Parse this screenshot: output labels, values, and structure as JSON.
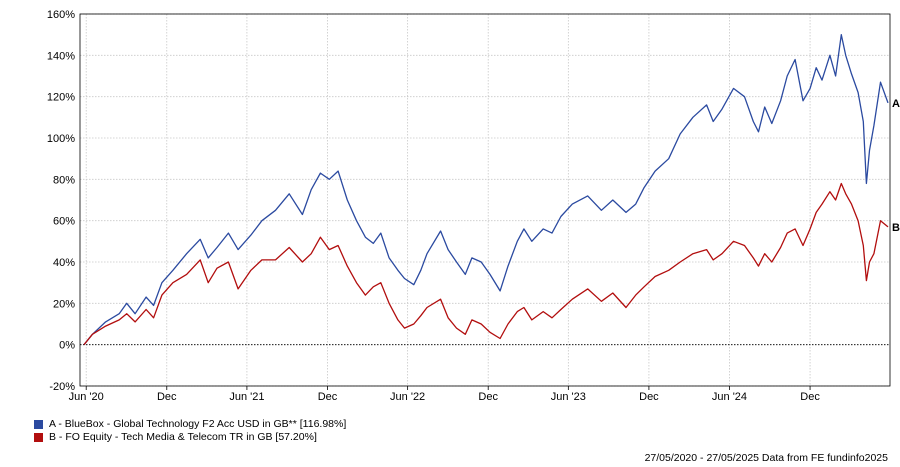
{
  "chart_data": {
    "type": "line",
    "x_start": "27/05/2020",
    "x_end": "27/05/2025",
    "xticks": [
      {
        "date": "2020-06-01",
        "label": "Jun '20"
      },
      {
        "date": "2020-12-01",
        "label": "Dec"
      },
      {
        "date": "2021-06-01",
        "label": "Jun '21"
      },
      {
        "date": "2021-12-01",
        "label": "Dec"
      },
      {
        "date": "2022-06-01",
        "label": "Jun '22"
      },
      {
        "date": "2022-12-01",
        "label": "Dec"
      },
      {
        "date": "2023-06-01",
        "label": "Jun '23"
      },
      {
        "date": "2023-12-01",
        "label": "Dec"
      },
      {
        "date": "2024-06-01",
        "label": "Jun '24"
      },
      {
        "date": "2024-12-01",
        "label": "Dec"
      }
    ],
    "ylim": [
      -20,
      160
    ],
    "yticks": [
      -20,
      0,
      20,
      40,
      60,
      80,
      100,
      120,
      140,
      160
    ],
    "ytick_suffix": "%",
    "grid": true,
    "baseline": 0,
    "series": [
      {
        "name": "A - BlueBox - Global Technology F2 Acc USD in GB** [116.98%]",
        "end_label": "A",
        "color": "#2b4aa0",
        "points": [
          [
            "2020-05-27",
            0
          ],
          [
            "2020-06-15",
            5
          ],
          [
            "2020-07-15",
            11
          ],
          [
            "2020-08-15",
            15
          ],
          [
            "2020-09-01",
            20
          ],
          [
            "2020-09-20",
            15
          ],
          [
            "2020-10-15",
            23
          ],
          [
            "2020-11-01",
            19
          ],
          [
            "2020-11-20",
            30
          ],
          [
            "2020-12-15",
            36
          ],
          [
            "2021-01-15",
            44
          ],
          [
            "2021-02-15",
            51
          ],
          [
            "2021-03-05",
            42
          ],
          [
            "2021-03-25",
            47
          ],
          [
            "2021-04-20",
            54
          ],
          [
            "2021-05-12",
            46
          ],
          [
            "2021-06-10",
            53
          ],
          [
            "2021-07-05",
            60
          ],
          [
            "2021-08-05",
            65
          ],
          [
            "2021-09-05",
            73
          ],
          [
            "2021-10-05",
            63
          ],
          [
            "2021-10-25",
            75
          ],
          [
            "2021-11-15",
            83
          ],
          [
            "2021-12-05",
            80
          ],
          [
            "2021-12-25",
            84
          ],
          [
            "2022-01-15",
            70
          ],
          [
            "2022-02-05",
            60
          ],
          [
            "2022-02-25",
            52
          ],
          [
            "2022-03-15",
            49
          ],
          [
            "2022-04-01",
            54
          ],
          [
            "2022-04-20",
            42
          ],
          [
            "2022-05-10",
            36
          ],
          [
            "2022-05-25",
            32
          ],
          [
            "2022-06-15",
            29
          ],
          [
            "2022-07-01",
            36
          ],
          [
            "2022-07-15",
            44
          ],
          [
            "2022-08-15",
            55
          ],
          [
            "2022-09-01",
            46
          ],
          [
            "2022-09-20",
            40
          ],
          [
            "2022-10-10",
            34
          ],
          [
            "2022-10-25",
            42
          ],
          [
            "2022-11-15",
            40
          ],
          [
            "2022-12-05",
            34
          ],
          [
            "2022-12-28",
            26
          ],
          [
            "2023-01-15",
            38
          ],
          [
            "2023-02-05",
            50
          ],
          [
            "2023-02-20",
            56
          ],
          [
            "2023-03-10",
            50
          ],
          [
            "2023-04-05",
            56
          ],
          [
            "2023-04-25",
            54
          ],
          [
            "2023-05-15",
            62
          ],
          [
            "2023-06-10",
            68
          ],
          [
            "2023-07-15",
            72
          ],
          [
            "2023-08-15",
            65
          ],
          [
            "2023-09-10",
            70
          ],
          [
            "2023-10-10",
            64
          ],
          [
            "2023-11-01",
            68
          ],
          [
            "2023-11-20",
            76
          ],
          [
            "2023-12-15",
            84
          ],
          [
            "2024-01-15",
            90
          ],
          [
            "2024-02-10",
            102
          ],
          [
            "2024-03-10",
            110
          ],
          [
            "2024-04-10",
            116
          ],
          [
            "2024-04-25",
            108
          ],
          [
            "2024-05-15",
            114
          ],
          [
            "2024-06-10",
            124
          ],
          [
            "2024-07-05",
            120
          ],
          [
            "2024-07-25",
            108
          ],
          [
            "2024-08-06",
            103
          ],
          [
            "2024-08-20",
            115
          ],
          [
            "2024-09-05",
            107
          ],
          [
            "2024-09-25",
            118
          ],
          [
            "2024-10-10",
            130
          ],
          [
            "2024-10-28",
            138
          ],
          [
            "2024-11-15",
            118
          ],
          [
            "2024-12-01",
            124
          ],
          [
            "2024-12-15",
            134
          ],
          [
            "2024-12-28",
            128
          ],
          [
            "2025-01-15",
            140
          ],
          [
            "2025-01-28",
            130
          ],
          [
            "2025-02-10",
            150
          ],
          [
            "2025-02-20",
            140
          ],
          [
            "2025-03-05",
            131
          ],
          [
            "2025-03-20",
            122
          ],
          [
            "2025-04-01",
            108
          ],
          [
            "2025-04-08",
            78
          ],
          [
            "2025-04-15",
            94
          ],
          [
            "2025-04-25",
            106
          ],
          [
            "2025-05-10",
            127
          ],
          [
            "2025-05-27",
            117
          ]
        ]
      },
      {
        "name": "B - FO Equity - Tech Media & Telecom TR in GB [57.20%]",
        "end_label": "B",
        "color": "#b20e0e",
        "points": [
          [
            "2020-05-27",
            0
          ],
          [
            "2020-06-15",
            5
          ],
          [
            "2020-07-15",
            9
          ],
          [
            "2020-08-15",
            12
          ],
          [
            "2020-09-01",
            15
          ],
          [
            "2020-09-20",
            11
          ],
          [
            "2020-10-15",
            17
          ],
          [
            "2020-11-01",
            13
          ],
          [
            "2020-11-20",
            24
          ],
          [
            "2020-12-15",
            30
          ],
          [
            "2021-01-15",
            34
          ],
          [
            "2021-02-15",
            41
          ],
          [
            "2021-03-05",
            30
          ],
          [
            "2021-03-25",
            37
          ],
          [
            "2021-04-20",
            40
          ],
          [
            "2021-05-12",
            27
          ],
          [
            "2021-06-10",
            36
          ],
          [
            "2021-07-05",
            41
          ],
          [
            "2021-08-05",
            41
          ],
          [
            "2021-09-05",
            47
          ],
          [
            "2021-10-05",
            40
          ],
          [
            "2021-10-25",
            44
          ],
          [
            "2021-11-15",
            52
          ],
          [
            "2021-12-05",
            46
          ],
          [
            "2021-12-25",
            48
          ],
          [
            "2022-01-15",
            38
          ],
          [
            "2022-02-05",
            30
          ],
          [
            "2022-02-25",
            24
          ],
          [
            "2022-03-15",
            28
          ],
          [
            "2022-04-01",
            30
          ],
          [
            "2022-04-20",
            20
          ],
          [
            "2022-05-10",
            12
          ],
          [
            "2022-05-25",
            8
          ],
          [
            "2022-06-15",
            10
          ],
          [
            "2022-07-01",
            14
          ],
          [
            "2022-07-15",
            18
          ],
          [
            "2022-08-15",
            22
          ],
          [
            "2022-09-01",
            13
          ],
          [
            "2022-09-20",
            8
          ],
          [
            "2022-10-10",
            5
          ],
          [
            "2022-10-25",
            12
          ],
          [
            "2022-11-15",
            10
          ],
          [
            "2022-12-05",
            6
          ],
          [
            "2022-12-28",
            3
          ],
          [
            "2023-01-15",
            10
          ],
          [
            "2023-02-05",
            16
          ],
          [
            "2023-02-20",
            18
          ],
          [
            "2023-03-10",
            12
          ],
          [
            "2023-04-05",
            16
          ],
          [
            "2023-04-25",
            13
          ],
          [
            "2023-05-15",
            17
          ],
          [
            "2023-06-10",
            22
          ],
          [
            "2023-07-15",
            27
          ],
          [
            "2023-08-15",
            21
          ],
          [
            "2023-09-10",
            25
          ],
          [
            "2023-10-10",
            18
          ],
          [
            "2023-11-01",
            24
          ],
          [
            "2023-11-20",
            28
          ],
          [
            "2023-12-15",
            33
          ],
          [
            "2024-01-15",
            36
          ],
          [
            "2024-02-10",
            40
          ],
          [
            "2024-03-10",
            44
          ],
          [
            "2024-04-10",
            46
          ],
          [
            "2024-04-25",
            41
          ],
          [
            "2024-05-15",
            44
          ],
          [
            "2024-06-10",
            50
          ],
          [
            "2024-07-05",
            48
          ],
          [
            "2024-07-25",
            42
          ],
          [
            "2024-08-06",
            38
          ],
          [
            "2024-08-20",
            44
          ],
          [
            "2024-09-05",
            40
          ],
          [
            "2024-09-25",
            47
          ],
          [
            "2024-10-10",
            54
          ],
          [
            "2024-10-28",
            56
          ],
          [
            "2024-11-15",
            48
          ],
          [
            "2024-12-01",
            56
          ],
          [
            "2024-12-15",
            64
          ],
          [
            "2024-12-28",
            68
          ],
          [
            "2025-01-15",
            74
          ],
          [
            "2025-01-28",
            70
          ],
          [
            "2025-02-10",
            78
          ],
          [
            "2025-02-20",
            73
          ],
          [
            "2025-03-05",
            68
          ],
          [
            "2025-03-20",
            60
          ],
          [
            "2025-04-01",
            48
          ],
          [
            "2025-04-08",
            31
          ],
          [
            "2025-04-15",
            40
          ],
          [
            "2025-04-25",
            44
          ],
          [
            "2025-05-10",
            60
          ],
          [
            "2025-05-27",
            57
          ]
        ]
      }
    ]
  },
  "footer": "27/05/2020 - 27/05/2025 Data from FE fundinfo2025"
}
